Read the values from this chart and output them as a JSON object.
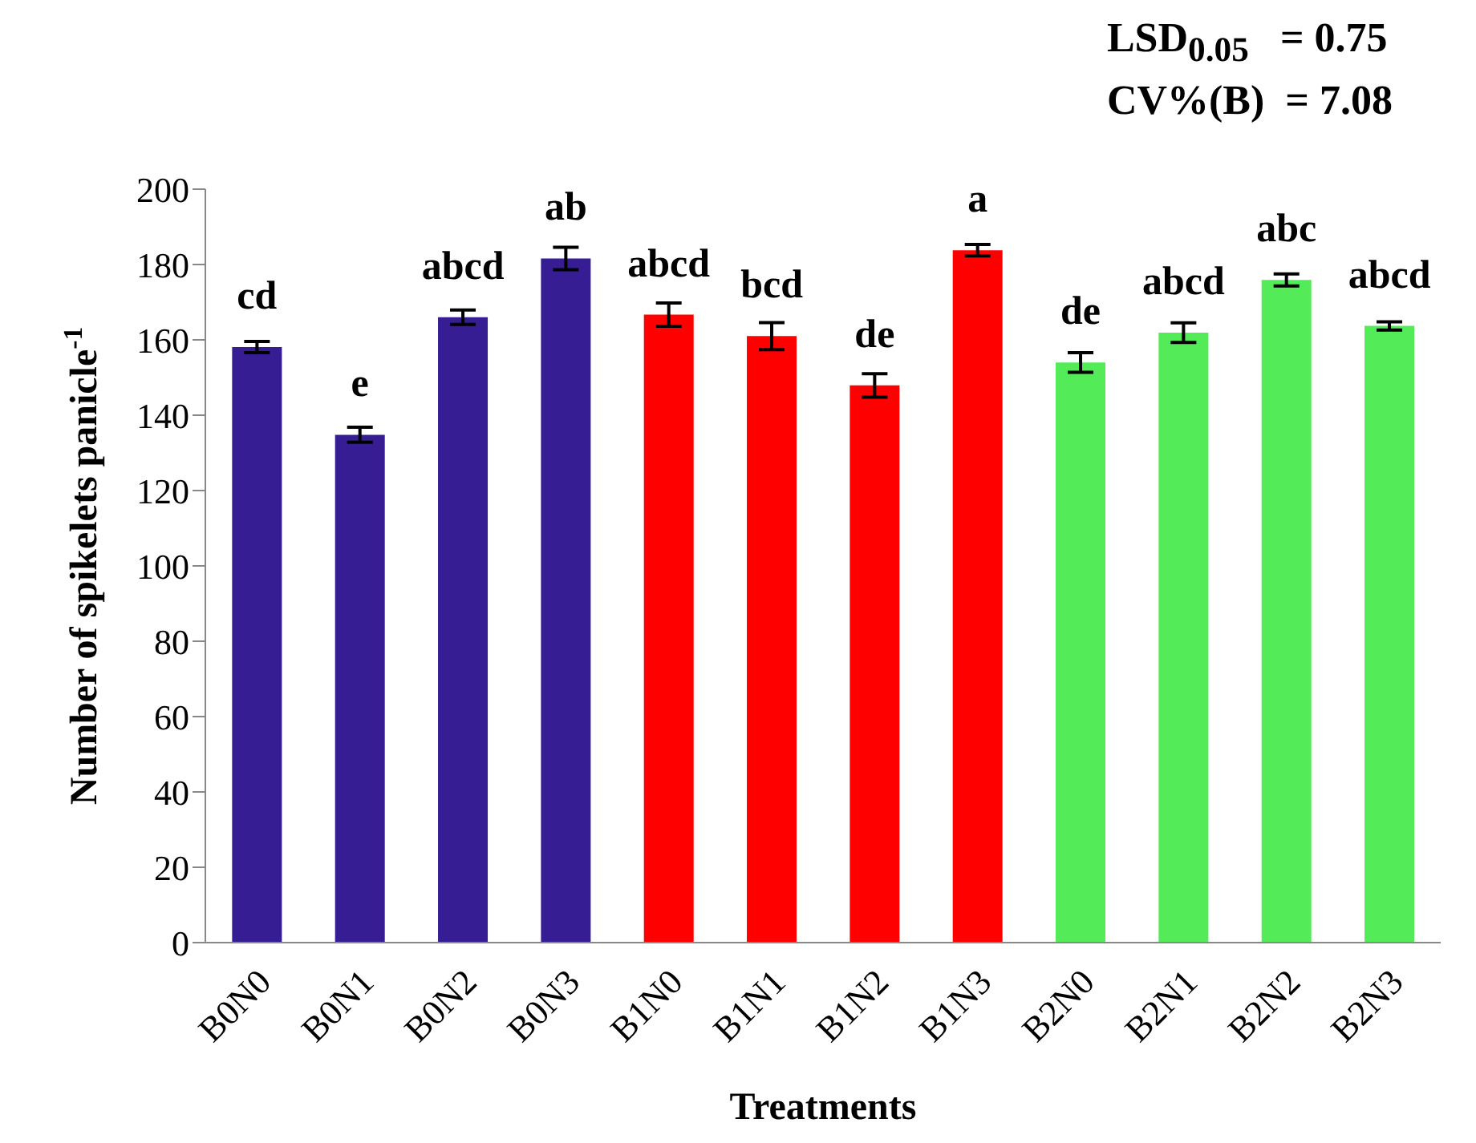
{
  "chart_data": {
    "type": "bar",
    "xlabel": "Treatments",
    "ylabel": "Number of spikelets panicle$^{-1}$",
    "categories": [
      "B0N0",
      "B0N1",
      "B0N2",
      "B0N3",
      "B1N0",
      "B1N1",
      "B1N2",
      "B1N3",
      "B2N0",
      "B2N1",
      "B2N2",
      "B2N3"
    ],
    "values": [
      158.1,
      134.8,
      166.0,
      181.6,
      166.7,
      161.0,
      147.9,
      183.8,
      154.0,
      161.9,
      175.9,
      163.7
    ],
    "errors": [
      1.5,
      2,
      1.9,
      3,
      3.1,
      3.6,
      3.1,
      1.5,
      2.6,
      2.6,
      1.6,
      1.1
    ],
    "value_labels": [
      "cd",
      "e",
      "abcd",
      "ab",
      "abcd",
      "bcd",
      "de",
      "a",
      "de",
      "abcd",
      "abc",
      "abcd"
    ],
    "colors": [
      "#361d93",
      "#361d93",
      "#361d93",
      "#361d93",
      "#ff0000",
      "#ff0000",
      "#ff0000",
      "#ff0000",
      "#54eb59",
      "#54eb59",
      "#54eb59",
      "#54eb59"
    ],
    "ylim": [
      0,
      200
    ],
    "yticks": [
      0,
      20,
      40,
      60,
      80,
      100,
      120,
      140,
      160,
      180,
      200
    ],
    "grid": false,
    "legend": false,
    "annotations": [
      "LSD$_{0.05}$   = 0.75",
      "CV%(B)  = 7.08"
    ]
  }
}
